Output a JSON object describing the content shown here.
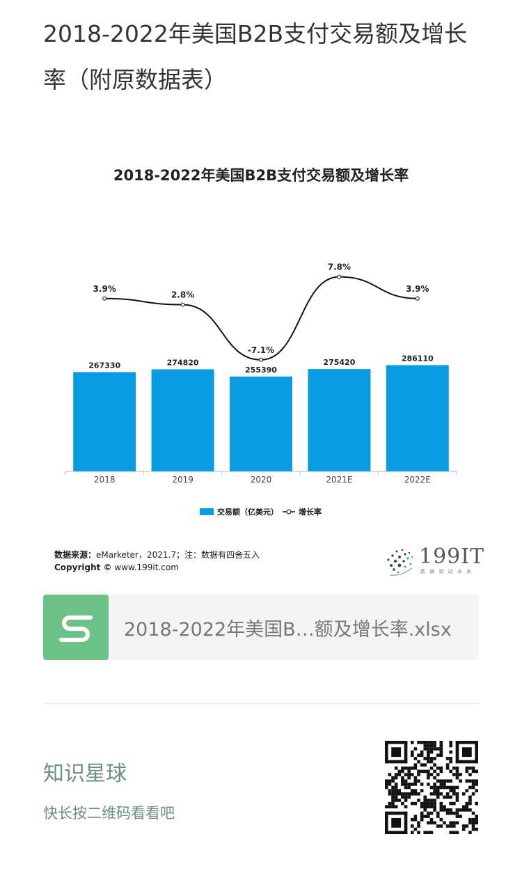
{
  "article": {
    "title": "2018-2022年美国B2B支付交易额及增长率（附原数据表）"
  },
  "chart_data": {
    "type": "bar",
    "title": "2018-2022年美国B2B支付交易额及增长率",
    "categories": [
      "2018",
      "2019",
      "2020",
      "2021E",
      "2022E"
    ],
    "series": [
      {
        "name": "交易额（亿美元）",
        "type": "bar",
        "values": [
          267330,
          274820,
          255390,
          275420,
          286110
        ],
        "labels": [
          "267330",
          "274820",
          "255390",
          "275420",
          "286110"
        ]
      },
      {
        "name": "增长率",
        "type": "line",
        "values": [
          3.9,
          2.8,
          -7.1,
          7.8,
          3.9
        ],
        "labels": [
          "3.9%",
          "2.8%",
          "-7.1%",
          "7.8%",
          "3.9%"
        ]
      }
    ],
    "ylim": [
      0,
      300000
    ],
    "grid": false,
    "legend": "bottom",
    "colors": {
      "bar": "#0a9be0",
      "line": "#111111"
    }
  },
  "source": {
    "label": "数据来源：",
    "text": "eMarketer，2021.7；注：数据有四舍五入",
    "copyright_label": "Copyright ©",
    "copyright_text": "www.199it.com"
  },
  "brand": {
    "name": "199IT",
    "slogan": "数 据 驱 动 未 来"
  },
  "attachment": {
    "file_name": "2018-2022年美国B…额及增长率.xlsx",
    "icon": "spreadsheet-s-icon",
    "icon_color": "#6cc287"
  },
  "planet": {
    "title": "知识星球",
    "subtitle": "快长按二维码看看吧"
  }
}
